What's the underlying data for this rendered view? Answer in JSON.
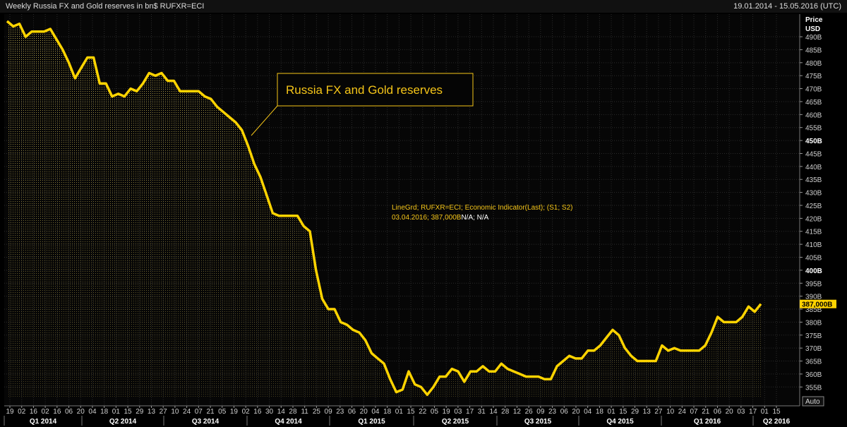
{
  "header": {
    "title": "Weekly Russia FX and Gold reserves in bn$ RUFXR=ECI",
    "date_range": "19.01.2014 - 15.05.2016 (UTC)"
  },
  "axis_header": {
    "line1": "Price",
    "line2": "USD"
  },
  "legend_box": {
    "label": "Russia FX and Gold reserves"
  },
  "info": {
    "line1": "LineGrd; RUFXR=ECI; Economic Indicator(Last); (S1; S2)",
    "line2_value": "03.04.2016; 387,000B",
    "line2_na": "N/A; N/A"
  },
  "last_value_label": "387,000B",
  "auto_button": "Auto",
  "chart_data": {
    "type": "area",
    "title": "Weekly Russia FX and Gold reserves in bn$ RUFXR=ECI",
    "series": [
      {
        "name": "Russia FX and Gold reserves",
        "color": "#ffd400",
        "values": [
          496,
          494,
          495,
          490,
          492,
          492,
          492,
          493,
          489,
          485,
          480,
          474,
          478,
          482,
          482,
          472,
          472,
          467,
          468,
          467,
          470,
          469,
          472,
          476,
          475,
          476,
          473,
          473,
          469,
          469,
          469,
          469,
          467,
          466,
          463,
          461,
          459,
          457,
          454,
          448,
          441,
          436,
          429,
          422,
          421,
          421,
          421,
          421,
          417,
          415,
          400,
          389,
          385,
          385,
          380,
          379,
          377,
          376,
          373,
          368,
          366,
          364,
          358,
          353,
          354,
          361,
          356,
          355,
          352,
          355,
          359,
          359,
          362,
          361,
          357,
          361,
          361,
          363,
          361,
          361,
          364,
          362,
          361,
          360,
          359,
          359,
          359,
          358,
          358,
          363,
          365,
          367,
          366,
          366,
          369,
          369,
          371,
          374,
          377,
          375,
          370,
          367,
          365,
          365,
          365,
          365,
          371,
          369,
          370,
          369,
          369,
          369,
          369,
          371,
          376,
          382,
          380,
          380,
          380,
          382,
          386,
          384,
          387
        ]
      }
    ],
    "x_start_week": "2014-01-19",
    "x_interval": "weekly",
    "ylim": [
      351,
      496
    ],
    "y_ticks": [
      355,
      360,
      365,
      370,
      375,
      380,
      385,
      390,
      395,
      400,
      405,
      410,
      415,
      420,
      425,
      430,
      435,
      440,
      445,
      450,
      455,
      460,
      465,
      470,
      475,
      480,
      485,
      490
    ],
    "y_tick_labels": [
      "355B",
      "360B",
      "365B",
      "370B",
      "375B",
      "380B",
      "385B",
      "390B",
      "395B",
      "400B",
      "405B",
      "410B",
      "415B",
      "420B",
      "425B",
      "430B",
      "435B",
      "440B",
      "445B",
      "450B",
      "455B",
      "460B",
      "465B",
      "470B",
      "475B",
      "480B",
      "485B",
      "490B"
    ],
    "y_bold_ticks": [
      400,
      450
    ],
    "x_tick_labels": [
      "19",
      "02",
      "16",
      "02",
      "16",
      "06",
      "20",
      "04",
      "18",
      "01",
      "15",
      "29",
      "13",
      "27",
      "10",
      "24",
      "07",
      "21",
      "05",
      "19",
      "02",
      "16",
      "30",
      "14",
      "28",
      "11",
      "25",
      "09",
      "23",
      "06",
      "20",
      "04",
      "18",
      "01",
      "15",
      "22",
      "05",
      "19",
      "03",
      "17",
      "31",
      "14",
      "28",
      "12",
      "26",
      "09",
      "23",
      "06",
      "20",
      "04",
      "18",
      "01",
      "15",
      "29",
      "13",
      "27",
      "10",
      "24",
      "07",
      "21",
      "06",
      "20",
      "03",
      "17",
      "01",
      "15"
    ],
    "quarters": [
      "Q1 2014",
      "Q2 2014",
      "Q3 2014",
      "Q4 2014",
      "Q1 2015",
      "Q2 2015",
      "Q3 2015",
      "Q4 2015",
      "Q1 2016",
      "Q2 2016"
    ],
    "last_value": 387,
    "grid": true,
    "legend_placement": "annotation box at upper-middle"
  }
}
